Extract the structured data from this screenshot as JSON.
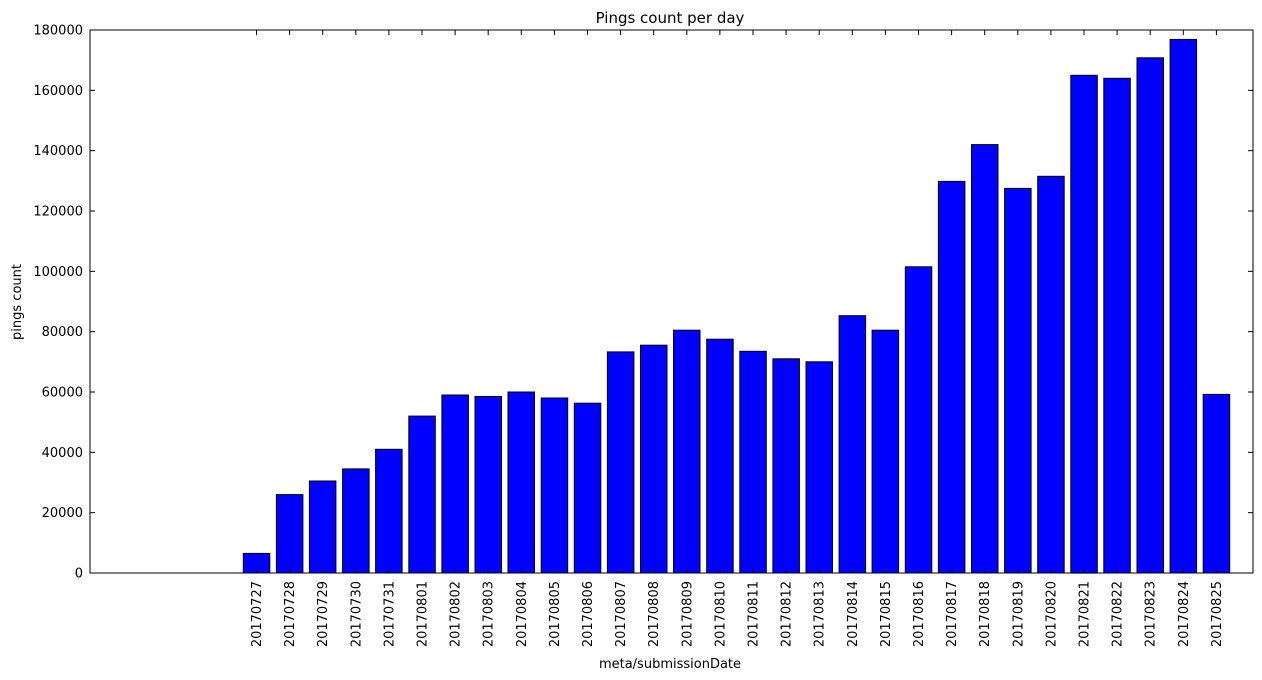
{
  "chart_data": {
    "type": "bar",
    "title": "Pings count per day",
    "xlabel": "meta/submissionDate",
    "ylabel": "pings count",
    "ylim": [
      0,
      180000
    ],
    "yticks": [
      "0",
      "20000",
      "40000",
      "60000",
      "80000",
      "100000",
      "120000",
      "140000",
      "160000",
      "180000"
    ],
    "grid": false,
    "bar_color": "#0000ff",
    "edge_color": "#000000",
    "categories": [
      "20170727",
      "20170728",
      "20170729",
      "20170730",
      "20170731",
      "20170801",
      "20170802",
      "20170803",
      "20170804",
      "20170805",
      "20170806",
      "20170807",
      "20170808",
      "20170809",
      "20170810",
      "20170811",
      "20170812",
      "20170813",
      "20170814",
      "20170815",
      "20170816",
      "20170817",
      "20170818",
      "20170819",
      "20170820",
      "20170821",
      "20170822",
      "20170823",
      "20170824",
      "20170825"
    ],
    "values": [
      6500,
      26000,
      30500,
      34500,
      41000,
      52000,
      59000,
      58500,
      60000,
      58000,
      56300,
      73300,
      75500,
      80500,
      77500,
      73500,
      71000,
      70000,
      85300,
      80500,
      101500,
      129800,
      142000,
      127500,
      131500,
      165000,
      164000,
      170800,
      176900,
      59200
    ]
  }
}
